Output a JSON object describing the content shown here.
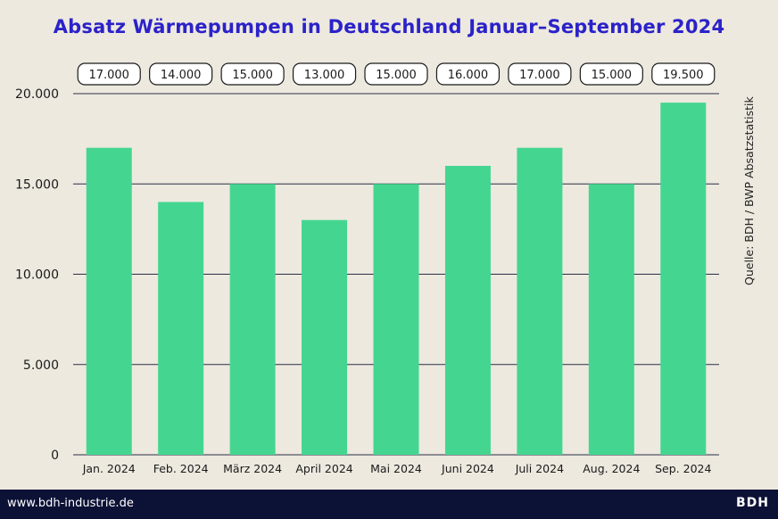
{
  "chart_data": {
    "type": "bar",
    "title": "Absatz Wärmepumpen in Deutschland Januar–September 2024",
    "categories": [
      "Jan. 2024",
      "Feb. 2024",
      "März 2024",
      "April 2024",
      "Mai 2024",
      "Juni 2024",
      "Juli 2024",
      "Aug. 2024",
      "Sep. 2024"
    ],
    "values": [
      17000,
      14000,
      15000,
      13000,
      15000,
      16000,
      17000,
      15000,
      19500
    ],
    "value_labels": [
      "17.000",
      "14.000",
      "15.000",
      "13.000",
      "15.000",
      "16.000",
      "17.000",
      "15.000",
      "19.500"
    ],
    "yticks": [
      0,
      5000,
      10000,
      15000,
      20000
    ],
    "ytick_labels": [
      "0",
      "5.000",
      "10.000",
      "15.000",
      "20.000"
    ],
    "ylim": [
      0,
      20000
    ],
    "xlabel": "",
    "ylabel": "",
    "grid": true,
    "bar_color": "#44d690",
    "grid_color": "#2a2f45"
  },
  "source": "Quelle: BDH / BWP Absatzstatistik",
  "footer": {
    "url": "www.bdh-industrie.de",
    "logo": "BDH"
  },
  "colors": {
    "title": "#2b22c9",
    "background": "#ede9df",
    "footer_bg": "#0c1136"
  }
}
